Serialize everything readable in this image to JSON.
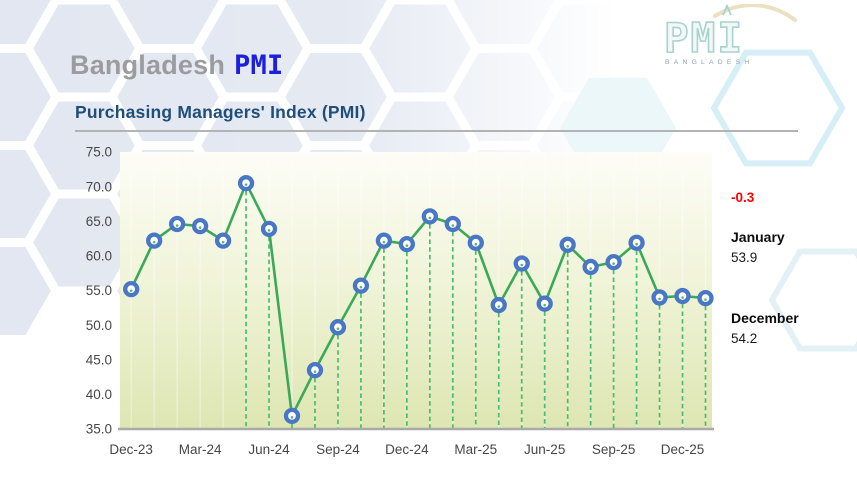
{
  "header": {
    "title_gray": "Bangladesh",
    "title_blue": "PMI",
    "subtitle": "Purchasing Managers' Index (PMI)"
  },
  "logo": {
    "text": "PMI",
    "subtext": "BANGLADESH"
  },
  "annotations": {
    "change": "-0.3",
    "latest_label": "January",
    "latest_value": "53.9",
    "previous_label": "December",
    "previous_value": "54.2"
  },
  "colors": {
    "line_green": "#3aa957",
    "drop_line_green": "#49bd6b",
    "marker_ring_blue": "#4a77c5",
    "marker_fill": "#ffffff",
    "axis_gray": "#a9a9a9",
    "tick_text": "#474747",
    "title_gray": "#9c9c9e",
    "title_blue": "#1c20dd",
    "subtitle_navy": "#1f4e79",
    "change_red": "#ff0000",
    "plot_gradient_top": "#fdfdf7",
    "plot_gradient_mid": "#eff3d6",
    "plot_gradient_bottom": "#dde6b2",
    "hex_fill": "#e2e7f1",
    "hex_stroke": "#ffffff",
    "hex_cyan": "#d6eef6",
    "logo_teal": "#a9d3cc",
    "logo_subtext_gray": "#97a1ab",
    "swoosh_gold": "#eae1c2"
  },
  "chart_data": {
    "type": "line",
    "title": "Purchasing Managers' Index (PMI)",
    "x": [
      "Dec-23",
      "Jan-24",
      "Feb-24",
      "Mar-24",
      "Apr-24",
      "May-24",
      "Jun-24",
      "Jul-24",
      "Aug-24",
      "Sep-24",
      "Oct-24",
      "Nov-24",
      "Dec-24",
      "Jan-25",
      "Feb-25",
      "Mar-25",
      "Apr-25",
      "May-25",
      "Jun-25",
      "Jul-25",
      "Aug-25",
      "Sep-25",
      "Oct-25",
      "Nov-25",
      "Dec-25",
      "Jan-26"
    ],
    "values": [
      55.2,
      62.2,
      64.6,
      64.3,
      62.2,
      70.5,
      63.9,
      36.9,
      43.5,
      49.7,
      55.7,
      62.2,
      61.7,
      65.7,
      64.6,
      61.9,
      52.9,
      58.9,
      53.1,
      61.6,
      58.4,
      59.1,
      61.9,
      54.0,
      54.2,
      53.9
    ],
    "x_tick_labels": [
      "Dec-23",
      "Mar-24",
      "Jun-24",
      "Sep-24",
      "Dec-24",
      "Mar-25",
      "Jun-25",
      "Sep-25",
      "Dec-25"
    ],
    "x_tick_every": 3,
    "y_ticks": [
      75,
      70,
      65,
      60,
      55,
      50,
      45,
      40,
      35
    ],
    "ylim": [
      35,
      75
    ],
    "xlabel": "",
    "ylabel": "",
    "legend": "none",
    "grid": "faint vertical monthly lines",
    "drop_lines_start_index": 5,
    "marker": "white circle with blue ring"
  }
}
